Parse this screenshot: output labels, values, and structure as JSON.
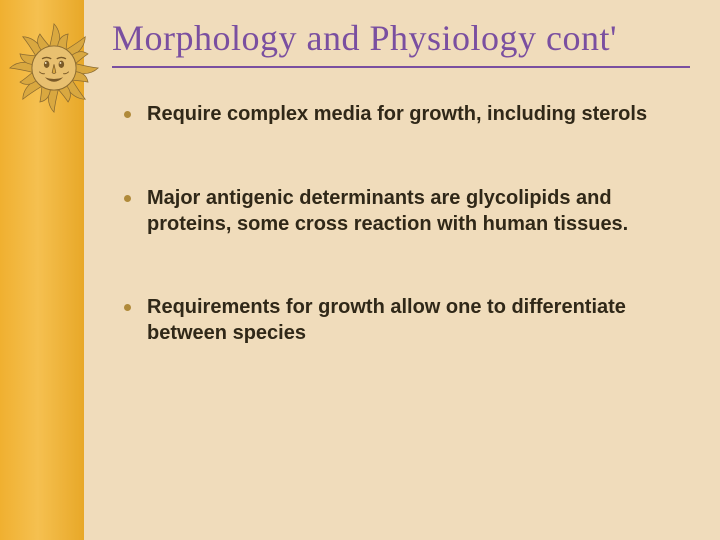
{
  "slide": {
    "title": "Morphology and Physiology cont'",
    "title_color": "#7a4fa0",
    "title_fontsize": 36,
    "title_font": "Georgia, 'Times New Roman', serif",
    "rule_color": "#7a4fa0",
    "background_color": "#f0dcbb",
    "sidebar_gradient": [
      "#f0b030",
      "#f5c050",
      "#e8a828"
    ],
    "sun": {
      "face_fill": "#e8c070",
      "face_stroke": "#8a6a30",
      "ray_fill": "#d9a840",
      "ray_stroke": "#8a6a30",
      "detail_stroke": "#7a5a28"
    },
    "bullets": [
      {
        "text": "Require complex media for growth, including sterols"
      },
      {
        "text": " Major antigenic determinants are glycolipids and proteins, some cross reaction with human tissues."
      },
      {
        "text": " Requirements for growth allow one to differentiate between species"
      }
    ],
    "bullet_color": "#302818",
    "bullet_dot_color": "#b08a3a",
    "bullet_fontsize": 20,
    "bullet_font": "Verdana, Geneva, sans-serif"
  }
}
